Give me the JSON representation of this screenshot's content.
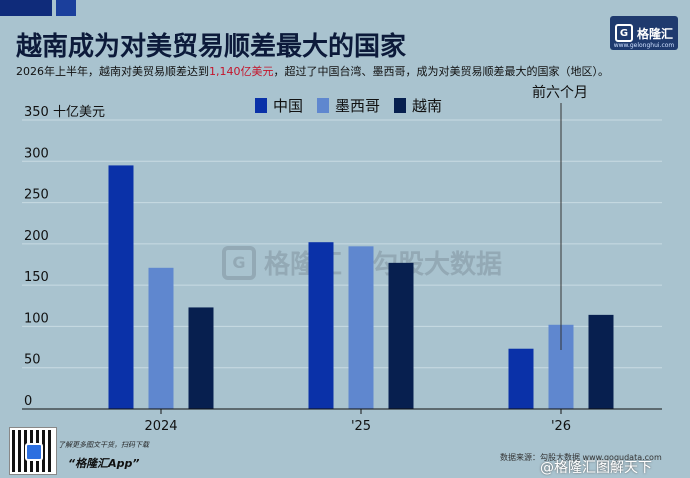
{
  "header": {
    "title": "越南成为对美贸易顺差最大的国家",
    "subtitle_before": "2026年上半年，越南对美贸易顺差达到",
    "subtitle_highlight": "1,140亿美元",
    "subtitle_after": "，超过了中国台湾、墨西哥，成为对美贸易顺差最大的国家（地区）。"
  },
  "logo": {
    "text": "格隆汇",
    "url": "www.gelonghui.com"
  },
  "watermark": {
    "brand_a": "格隆汇",
    "brand_a_url": "gelonghui.com",
    "brand_b": "勾股大数据",
    "brand_b_url": "gogudata.com"
  },
  "colors": {
    "background": "#a9c3cf",
    "china": "#0a31a8",
    "mexico": "#5f87cf",
    "vietnam": "#071f4f",
    "highlight": "#c4142b"
  },
  "chart_data": {
    "type": "bar",
    "categories": [
      "2024",
      "'25",
      "'26"
    ],
    "series": [
      {
        "name": "中国",
        "values": [
          295,
          202,
          73
        ]
      },
      {
        "name": "墨西哥",
        "values": [
          171,
          197,
          102
        ]
      },
      {
        "name": "越南",
        "values": [
          123,
          177,
          114
        ]
      }
    ],
    "ylim": [
      0,
      350
    ],
    "yticks": [
      0,
      50,
      100,
      150,
      200,
      250,
      300,
      350
    ],
    "ytick_labels": [
      "0",
      "50",
      "100",
      "150",
      "200",
      "250",
      "300",
      "350 十亿美元"
    ],
    "grid": true,
    "legend_position": "top-center",
    "annotation": "前六个月"
  },
  "footer": {
    "note": "了解更多图文干货，扫码下载",
    "app": "“格隆汇App”",
    "source": "数据来源：勾股大数据 www.gogudata.com",
    "weibo": "@格隆汇图解天下"
  }
}
